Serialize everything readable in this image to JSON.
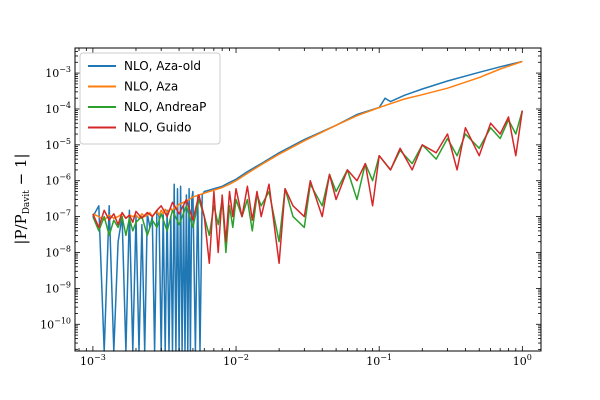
{
  "chart_data": {
    "type": "line",
    "title": "",
    "xlabel": "",
    "ylabel": {
      "main": "|P/P",
      "subscript": "Davit",
      "tail": " − 1|"
    },
    "xscale": "log",
    "yscale": "log",
    "xlim": [
      0.00075,
      1.35
    ],
    "ylim": [
      1.8e-11,
      0.005
    ],
    "grid": false,
    "legend_position": "top-left",
    "xticks": [
      {
        "value": 0.001,
        "base": "10",
        "exp": "−3"
      },
      {
        "value": 0.01,
        "base": "10",
        "exp": "−2"
      },
      {
        "value": 0.1,
        "base": "10",
        "exp": "−1"
      },
      {
        "value": 1,
        "base": "10",
        "exp": "0"
      }
    ],
    "yticks": [
      {
        "value": 1e-10,
        "base": "10",
        "exp": "−10"
      },
      {
        "value": 1e-09,
        "base": "10",
        "exp": "−9"
      },
      {
        "value": 1e-08,
        "base": "10",
        "exp": "−8"
      },
      {
        "value": 1e-07,
        "base": "10",
        "exp": "−7"
      },
      {
        "value": 1e-06,
        "base": "10",
        "exp": "−6"
      },
      {
        "value": 1e-05,
        "base": "10",
        "exp": "−5"
      },
      {
        "value": 0.0001,
        "base": "10",
        "exp": "−4"
      },
      {
        "value": 0.001,
        "base": "10",
        "exp": "−3"
      }
    ],
    "series": [
      {
        "name": "NLO, Aza-old",
        "color": "#1f77b4",
        "x": [
          0.001,
          0.0011,
          0.0012,
          0.0013,
          0.0014,
          0.0015,
          0.0016,
          0.0017,
          0.0018,
          0.0019,
          0.002,
          0.0021,
          0.0022,
          0.0023,
          0.0024,
          0.0025,
          0.0026,
          0.0027,
          0.0028,
          0.0029,
          0.003,
          0.0031,
          0.0032,
          0.0033,
          0.0034,
          0.0035,
          0.0036,
          0.0037,
          0.0038,
          0.0039,
          0.004,
          0.0041,
          0.0042,
          0.0043,
          0.0044,
          0.0045,
          0.0046,
          0.0047,
          0.0048,
          0.0049,
          0.005,
          0.0052,
          0.0054,
          0.0056,
          0.0058,
          0.006,
          0.0065,
          0.007,
          0.008,
          0.009,
          0.01,
          0.012,
          0.015,
          0.02,
          0.03,
          0.05,
          0.07,
          0.1,
          0.11,
          0.12,
          0.15,
          0.2,
          0.3,
          0.5,
          0.7,
          1.0
        ],
        "y": [
          1e-07,
          2e-07,
          1.5e-11,
          2e-07,
          1.5e-11,
          2e-08,
          1e-07,
          1.5e-11,
          1.5e-07,
          1.5e-11,
          1e-07,
          1.5e-11,
          6e-08,
          1.5e-11,
          1.2e-07,
          5e-08,
          1e-07,
          1.5e-11,
          1.5e-07,
          1e-07,
          1.5e-11,
          1.2e-07,
          1.5e-11,
          1.5e-07,
          1.5e-11,
          1e-07,
          1.5e-11,
          8e-07,
          1.5e-11,
          6e-07,
          1.5e-11,
          7e-07,
          1.5e-11,
          2e-07,
          1.5e-11,
          4e-07,
          1.5e-11,
          6e-07,
          1.5e-11,
          3e-07,
          5e-07,
          1.5e-11,
          4e-07,
          1.5e-11,
          4e-07,
          5e-07,
          5.5e-07,
          6e-07,
          7e-07,
          9e-07,
          1.1e-06,
          1.8e-06,
          3e-06,
          6e-06,
          1.4e-05,
          3.5e-05,
          7e-05,
          0.00011,
          0.0002,
          0.00016,
          0.00024,
          0.00036,
          0.0006,
          0.00105,
          0.0015,
          0.0021
        ]
      },
      {
        "name": "NLO, Aza",
        "color": "#ff7f0e",
        "x": [
          0.001,
          0.0011,
          0.0012,
          0.0013,
          0.0014,
          0.0015,
          0.0016,
          0.0017,
          0.0018,
          0.0019,
          0.002,
          0.0021,
          0.0022,
          0.0023,
          0.0024,
          0.0025,
          0.0026,
          0.0027,
          0.0028,
          0.0029,
          0.003,
          0.0031,
          0.0032,
          0.0033,
          0.0034,
          0.0035,
          0.0036,
          0.0037,
          0.0038,
          0.0039,
          0.004,
          0.0042,
          0.0044,
          0.0046,
          0.0048,
          0.005,
          0.0055,
          0.006,
          0.0065,
          0.007,
          0.008,
          0.009,
          0.01,
          0.012,
          0.015,
          0.02,
          0.03,
          0.05,
          0.07,
          0.1,
          0.15,
          0.2,
          0.3,
          0.5,
          0.7,
          1.0
        ],
        "y": [
          1.2e-07,
          1e-07,
          8e-08,
          1.1e-07,
          9e-08,
          1e-07,
          1.2e-07,
          9e-08,
          1.1e-07,
          1e-07,
          1.1e-07,
          9e-08,
          1.2e-07,
          1e-07,
          1.1e-07,
          1.3e-07,
          1e-07,
          1.2e-07,
          1.4e-07,
          1.1e-07,
          1.5e-07,
          1.2e-07,
          1.6e-07,
          1.3e-07,
          1.5e-07,
          1.7e-07,
          1.4e-07,
          1.8e-07,
          1.6e-07,
          2e-07,
          2.2e-07,
          2.4e-07,
          2.6e-07,
          2.8e-07,
          3.2e-07,
          3.5e-07,
          4e-07,
          4.5e-07,
          5e-07,
          5.5e-07,
          6.5e-07,
          8e-07,
          1e-06,
          1.6e-06,
          2.8e-06,
          5.5e-06,
          1.3e-05,
          3.5e-05,
          6.5e-05,
          0.00011,
          0.00019,
          0.00025,
          0.00038,
          0.00075,
          0.0013,
          0.0021
        ]
      },
      {
        "name": "NLO, AndreaP",
        "color": "#2ca02c",
        "x": [
          0.001,
          0.0011,
          0.0012,
          0.0013,
          0.0014,
          0.0015,
          0.0016,
          0.0017,
          0.0018,
          0.0019,
          0.002,
          0.0022,
          0.0024,
          0.0026,
          0.0028,
          0.003,
          0.0033,
          0.0036,
          0.004,
          0.0045,
          0.005,
          0.0055,
          0.006,
          0.0065,
          0.007,
          0.0075,
          0.008,
          0.0085,
          0.009,
          0.0095,
          0.01,
          0.011,
          0.012,
          0.013,
          0.014,
          0.015,
          0.017,
          0.02,
          0.022,
          0.025,
          0.03,
          0.033,
          0.04,
          0.045,
          0.05,
          0.06,
          0.07,
          0.08,
          0.09,
          0.1,
          0.12,
          0.14,
          0.17,
          0.2,
          0.25,
          0.3,
          0.35,
          0.4,
          0.5,
          0.6,
          0.7,
          0.8,
          0.9,
          1.0
        ],
        "y": [
          1e-07,
          4e-08,
          1e-07,
          3e-08,
          8e-08,
          5e-08,
          1e-07,
          3e-08,
          9e-08,
          4e-08,
          7e-08,
          1e-07,
          3e-08,
          8e-08,
          5e-08,
          1.2e-07,
          4e-08,
          1.5e-07,
          6e-08,
          2e-07,
          5e-08,
          3e-07,
          1e-07,
          3e-08,
          2e-07,
          6e-08,
          3e-07,
          1e-08,
          2e-07,
          5e-08,
          3e-07,
          1e-07,
          3e-07,
          4e-08,
          4e-07,
          2e-07,
          5e-07,
          2e-08,
          6e-07,
          1e-07,
          5e-08,
          8e-07,
          2e-07,
          1.5e-06,
          5e-07,
          2e-06,
          3e-07,
          3e-06,
          1e-06,
          5e-06,
          2e-06,
          7e-06,
          3e-06,
          1e-05,
          4e-06,
          1.5e-05,
          5e-06,
          2e-05,
          8e-06,
          3e-05,
          1.5e-05,
          5e-05,
          2e-05,
          9e-05
        ]
      },
      {
        "name": "NLO, Guido",
        "color": "#d62728",
        "x": [
          0.001,
          0.0011,
          0.0012,
          0.0013,
          0.0014,
          0.0015,
          0.0016,
          0.0017,
          0.0018,
          0.0019,
          0.002,
          0.0022,
          0.0024,
          0.0026,
          0.0028,
          0.003,
          0.0033,
          0.0036,
          0.004,
          0.0045,
          0.005,
          0.0055,
          0.006,
          0.0065,
          0.007,
          0.0075,
          0.008,
          0.0085,
          0.009,
          0.0095,
          0.01,
          0.011,
          0.012,
          0.013,
          0.014,
          0.015,
          0.017,
          0.02,
          0.022,
          0.025,
          0.03,
          0.033,
          0.04,
          0.045,
          0.05,
          0.06,
          0.07,
          0.08,
          0.09,
          0.1,
          0.12,
          0.14,
          0.17,
          0.2,
          0.25,
          0.3,
          0.35,
          0.4,
          0.5,
          0.6,
          0.7,
          0.8,
          0.9,
          1.0
        ],
        "y": [
          1.2e-07,
          5e-08,
          1.5e-07,
          8e-08,
          1.2e-07,
          6e-08,
          1.3e-07,
          9e-08,
          1.1e-07,
          7e-08,
          1.4e-07,
          9e-08,
          1.3e-07,
          1e-07,
          1.5e-07,
          2e-07,
          1e-07,
          2.5e-07,
          1.2e-07,
          3e-07,
          8e-08,
          4e-07,
          1e-07,
          5e-09,
          5e-07,
          1e-08,
          4e-07,
          2e-08,
          5e-07,
          1e-07,
          6e-07,
          1e-07,
          7e-07,
          8e-08,
          5e-07,
          1e-07,
          8e-07,
          5e-09,
          6e-07,
          2e-07,
          1e-07,
          1e-06,
          1e-07,
          1.5e-06,
          3e-07,
          2e-06,
          1e-06,
          3e-06,
          2e-07,
          5e-06,
          2e-06,
          8e-06,
          2e-06,
          1e-05,
          6e-06,
          2e-05,
          2e-06,
          3e-05,
          5e-06,
          4e-05,
          2e-05,
          6e-05,
          5e-06,
          9e-05
        ]
      }
    ]
  }
}
